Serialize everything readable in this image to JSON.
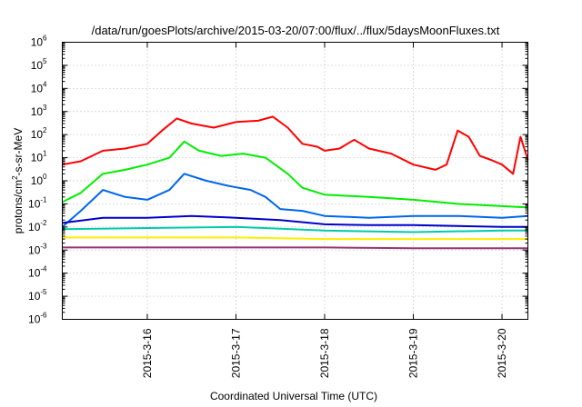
{
  "chart_data": {
    "type": "line",
    "title": "/data/run/goesPlots/archive/2015-03-20/07:00/flux/../flux/5daysMoonFluxes.txt",
    "xlabel": "Coordinated Universal Time (UTC)",
    "ylabel": "protons/cm2-s-sr-MeV",
    "ylabel_parts": {
      "pre": "protons/cm",
      "sup": "2",
      "post": "-s-sr-MeV"
    },
    "y_scale": "log",
    "ylim_exp": [
      -6,
      6
    ],
    "y_tick_exponents": [
      -6,
      -5,
      -4,
      -3,
      -2,
      -1,
      0,
      1,
      2,
      3,
      4,
      5,
      6
    ],
    "y_tick_base": "10",
    "xlim": [
      "2015-03-15 01:00",
      "2015-03-20 07:00"
    ],
    "x_ticks": [
      {
        "label": "2015-3-16",
        "t": "2015-03-16 00:00"
      },
      {
        "label": "2015-3-17",
        "t": "2015-03-17 00:00"
      },
      {
        "label": "2015-3-18",
        "t": "2015-03-18 00:00"
      },
      {
        "label": "2015-3-19",
        "t": "2015-03-19 00:00"
      },
      {
        "label": "2015-3-20",
        "t": "2015-03-20 00:00"
      }
    ],
    "grid": true,
    "legend": "none",
    "series": [
      {
        "color": "#ff0000",
        "x": [
          "2015-03-15 01:00",
          "2015-03-15 06:00",
          "2015-03-15 12:00",
          "2015-03-15 18:00",
          "2015-03-16 00:00",
          "2015-03-16 04:00",
          "2015-03-16 08:00",
          "2015-03-16 12:00",
          "2015-03-16 18:00",
          "2015-03-17 00:00",
          "2015-03-17 06:00",
          "2015-03-17 10:00",
          "2015-03-17 14:00",
          "2015-03-17 18:00",
          "2015-03-17 22:00",
          "2015-03-18 00:00",
          "2015-03-18 04:00",
          "2015-03-18 08:00",
          "2015-03-18 12:00",
          "2015-03-18 18:00",
          "2015-03-19 00:00",
          "2015-03-19 06:00",
          "2015-03-19 09:00",
          "2015-03-19 12:00",
          "2015-03-19 15:00",
          "2015-03-19 18:00",
          "2015-03-19 21:00",
          "2015-03-20 00:00",
          "2015-03-20 03:00",
          "2015-03-20 05:00",
          "2015-03-20 07:00"
        ],
        "y": [
          5,
          7,
          20,
          25,
          40,
          150,
          500,
          300,
          200,
          350,
          400,
          600,
          200,
          40,
          30,
          20,
          25,
          60,
          25,
          15,
          5,
          3,
          5,
          150,
          80,
          12,
          8,
          5,
          2,
          80,
          8
        ]
      },
      {
        "color": "#00ee00",
        "x": [
          "2015-03-15 01:00",
          "2015-03-15 06:00",
          "2015-03-15 12:00",
          "2015-03-15 18:00",
          "2015-03-16 00:00",
          "2015-03-16 06:00",
          "2015-03-16 10:00",
          "2015-03-16 14:00",
          "2015-03-16 20:00",
          "2015-03-17 02:00",
          "2015-03-17 08:00",
          "2015-03-17 14:00",
          "2015-03-17 18:00",
          "2015-03-18 00:00",
          "2015-03-18 12:00",
          "2015-03-19 00:00",
          "2015-03-19 12:00",
          "2015-03-20 00:00",
          "2015-03-20 07:00"
        ],
        "y": [
          0.12,
          0.3,
          2,
          3,
          5,
          10,
          50,
          20,
          12,
          15,
          10,
          2,
          0.5,
          0.25,
          0.2,
          0.15,
          0.1,
          0.08,
          0.07
        ]
      },
      {
        "color": "#0066ee",
        "x": [
          "2015-03-15 01:00",
          "2015-03-15 06:00",
          "2015-03-15 12:00",
          "2015-03-15 18:00",
          "2015-03-16 00:00",
          "2015-03-16 06:00",
          "2015-03-16 10:00",
          "2015-03-16 16:00",
          "2015-03-16 22:00",
          "2015-03-17 04:00",
          "2015-03-17 08:00",
          "2015-03-17 12:00",
          "2015-03-17 18:00",
          "2015-03-18 00:00",
          "2015-03-18 12:00",
          "2015-03-19 00:00",
          "2015-03-19 12:00",
          "2015-03-20 00:00",
          "2015-03-20 07:00"
        ],
        "y": [
          0.01,
          0.05,
          0.4,
          0.2,
          0.15,
          0.4,
          2,
          1,
          0.6,
          0.4,
          0.2,
          0.06,
          0.05,
          0.03,
          0.025,
          0.03,
          0.03,
          0.025,
          0.03
        ]
      },
      {
        "color": "#0000cc",
        "x": [
          "2015-03-15 01:00",
          "2015-03-15 12:00",
          "2015-03-16 00:00",
          "2015-03-16 12:00",
          "2015-03-17 00:00",
          "2015-03-17 12:00",
          "2015-03-18 00:00",
          "2015-03-18 12:00",
          "2015-03-19 00:00",
          "2015-03-19 12:00",
          "2015-03-20 00:00",
          "2015-03-20 07:00"
        ],
        "y": [
          0.015,
          0.025,
          0.025,
          0.03,
          0.025,
          0.02,
          0.013,
          0.012,
          0.012,
          0.011,
          0.01,
          0.01
        ]
      },
      {
        "color": "#00ccaa",
        "x": [
          "2015-03-15 01:00",
          "2015-03-16 00:00",
          "2015-03-17 00:00",
          "2015-03-18 00:00",
          "2015-03-19 00:00",
          "2015-03-20 00:00",
          "2015-03-20 07:00"
        ],
        "y": [
          0.008,
          0.009,
          0.01,
          0.007,
          0.006,
          0.007,
          0.007
        ]
      },
      {
        "color": "#ffee00",
        "x": [
          "2015-03-15 01:00",
          "2015-03-16 00:00",
          "2015-03-17 00:00",
          "2015-03-18 00:00",
          "2015-03-19 00:00",
          "2015-03-20 00:00",
          "2015-03-20 07:00"
        ],
        "y": [
          0.0035,
          0.0035,
          0.0035,
          0.003,
          0.003,
          0.003,
          0.003
        ]
      },
      {
        "color": "#993377",
        "x": [
          "2015-03-15 01:00",
          "2015-03-16 00:00",
          "2015-03-17 00:00",
          "2015-03-18 00:00",
          "2015-03-19 00:00",
          "2015-03-20 00:00",
          "2015-03-20 07:00"
        ],
        "y": [
          0.0013,
          0.0013,
          0.0013,
          0.0013,
          0.0012,
          0.0012,
          0.0012
        ]
      }
    ]
  }
}
